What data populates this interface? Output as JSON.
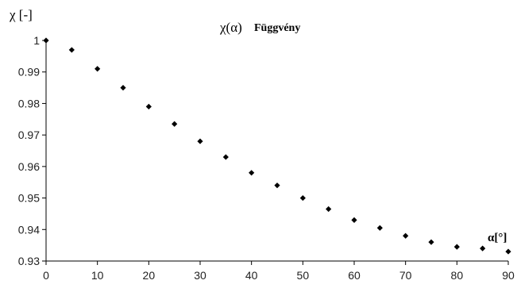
{
  "chart_data": {
    "type": "scatter",
    "title": "χ(α) Függvény",
    "title_symbol": "χ(α)",
    "title_word": "Függvény",
    "ylabel": "χ [-]",
    "xlabel": "α[°]",
    "xlim": [
      0,
      90
    ],
    "ylim": [
      0.93,
      1.0
    ],
    "xticks": [
      0,
      10,
      20,
      30,
      40,
      50,
      60,
      70,
      80,
      90
    ],
    "yticks": [
      1,
      0.99,
      0.98,
      0.97,
      0.96,
      0.95,
      0.94,
      0.93
    ],
    "ytick_labels": [
      "1",
      "0.99",
      "0.98",
      "0.97",
      "0.96",
      "0.95",
      "0.94",
      "0.93"
    ],
    "grid": false,
    "legend": "none",
    "marker": "diamond",
    "marker_color": "#000000",
    "x": [
      0,
      5,
      10,
      15,
      20,
      25,
      30,
      35,
      40,
      45,
      50,
      55,
      60,
      65,
      70,
      75,
      80,
      85,
      90
    ],
    "y": [
      1.0,
      0.997,
      0.991,
      0.985,
      0.979,
      0.9735,
      0.968,
      0.963,
      0.958,
      0.954,
      0.95,
      0.9465,
      0.943,
      0.9405,
      0.938,
      0.936,
      0.9345,
      0.934,
      0.933
    ]
  }
}
